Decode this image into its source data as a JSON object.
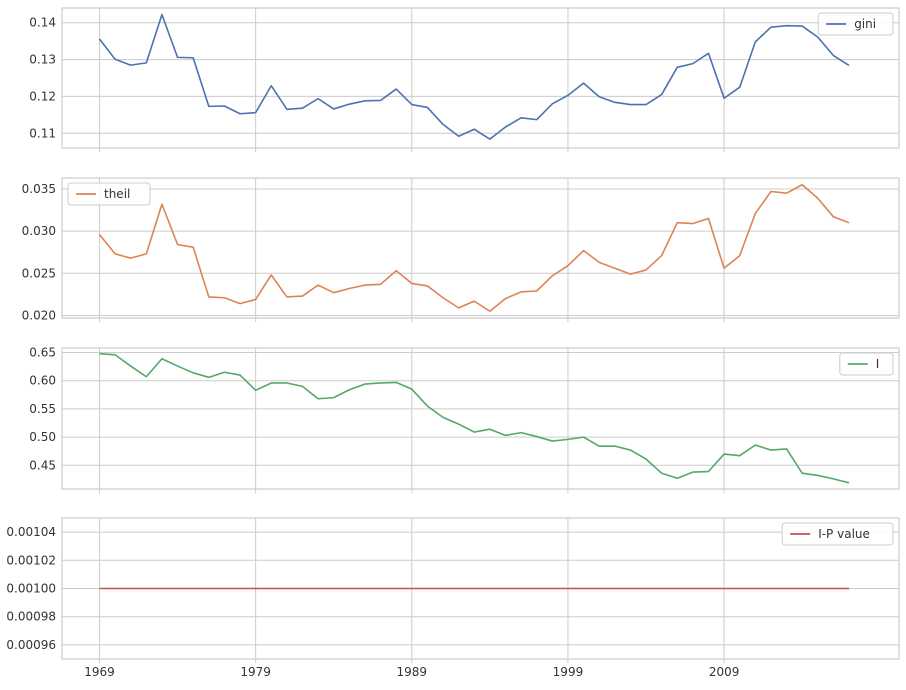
{
  "chart_data": [
    {
      "type": "line",
      "series": [
        {
          "name": "gini",
          "color": "#4c72b0",
          "values": [
            0.1356,
            0.1301,
            0.1285,
            0.1291,
            0.1422,
            0.1306,
            0.1305,
            0.1173,
            0.1174,
            0.1153,
            0.1156,
            0.1229,
            0.1165,
            0.1168,
            0.1194,
            0.1166,
            0.1179,
            0.1188,
            0.1189,
            0.122,
            0.1178,
            0.117,
            0.1124,
            0.1092,
            0.1111,
            0.1084,
            0.1117,
            0.1142,
            0.1137,
            0.118,
            0.1203,
            0.1236,
            0.1199,
            0.1184,
            0.1178,
            0.1178,
            0.1205,
            0.1279,
            0.1289,
            0.1317,
            0.1195,
            0.1225,
            0.1348,
            0.1388,
            0.1392,
            0.1391,
            0.1361,
            0.1311,
            0.1284
          ]
        }
      ],
      "ylim": [
        0.106,
        0.144
      ],
      "yticks": [
        0.11,
        0.12,
        0.13,
        0.14
      ],
      "ytick_labels": [
        "0.11",
        "0.12",
        "0.13",
        "0.14"
      ],
      "legend": "top-right"
    },
    {
      "type": "line",
      "series": [
        {
          "name": "theil",
          "color": "#dd8452",
          "values": [
            0.0296,
            0.0273,
            0.0268,
            0.0273,
            0.0332,
            0.0284,
            0.0281,
            0.0222,
            0.0221,
            0.0214,
            0.0219,
            0.0248,
            0.0222,
            0.0223,
            0.0236,
            0.0227,
            0.0232,
            0.0236,
            0.0237,
            0.0253,
            0.0238,
            0.0235,
            0.0221,
            0.0209,
            0.0217,
            0.0205,
            0.022,
            0.0228,
            0.0229,
            0.0247,
            0.0259,
            0.0277,
            0.0263,
            0.0256,
            0.0249,
            0.0254,
            0.0271,
            0.031,
            0.0309,
            0.0315,
            0.0256,
            0.0271,
            0.0321,
            0.0347,
            0.0345,
            0.0355,
            0.0339,
            0.0317,
            0.031
          ]
        }
      ],
      "ylim": [
        0.0197,
        0.0363
      ],
      "yticks": [
        0.02,
        0.025,
        0.03,
        0.035
      ],
      "ytick_labels": [
        "0.020",
        "0.025",
        "0.030",
        "0.035"
      ],
      "legend": "top-left"
    },
    {
      "type": "line",
      "series": [
        {
          "name": "I",
          "color": "#55a868",
          "values": [
            0.648,
            0.646,
            0.626,
            0.607,
            0.639,
            0.626,
            0.614,
            0.606,
            0.615,
            0.61,
            0.583,
            0.596,
            0.596,
            0.59,
            0.568,
            0.57,
            0.584,
            0.594,
            0.596,
            0.597,
            0.585,
            0.555,
            0.535,
            0.523,
            0.509,
            0.514,
            0.503,
            0.508,
            0.501,
            0.493,
            0.496,
            0.5,
            0.484,
            0.484,
            0.477,
            0.461,
            0.436,
            0.427,
            0.438,
            0.439,
            0.47,
            0.467,
            0.486,
            0.477,
            0.479,
            0.436,
            0.432,
            0.426,
            0.419
          ]
        }
      ],
      "ylim": [
        0.408,
        0.658
      ],
      "yticks": [
        0.45,
        0.5,
        0.55,
        0.6,
        0.65
      ],
      "ytick_labels": [
        "0.45",
        "0.50",
        "0.55",
        "0.60",
        "0.65"
      ],
      "legend": "top-right"
    },
    {
      "type": "line",
      "series": [
        {
          "name": "I-P value",
          "color": "#c44e52",
          "values": [
            0.001,
            0.001,
            0.001,
            0.001,
            0.001,
            0.001,
            0.001,
            0.001,
            0.001,
            0.001,
            0.001,
            0.001,
            0.001,
            0.001,
            0.001,
            0.001,
            0.001,
            0.001,
            0.001,
            0.001,
            0.001,
            0.001,
            0.001,
            0.001,
            0.001,
            0.001,
            0.001,
            0.001,
            0.001,
            0.001,
            0.001,
            0.001,
            0.001,
            0.001,
            0.001,
            0.001,
            0.001,
            0.001,
            0.001,
            0.001,
            0.001,
            0.001,
            0.001,
            0.001,
            0.001,
            0.001,
            0.001,
            0.001,
            0.001
          ]
        }
      ],
      "ylim": [
        0.00095,
        0.00105
      ],
      "yticks": [
        0.00096,
        0.00098,
        0.001,
        0.00102,
        0.00104
      ],
      "ytick_labels": [
        "0.00096",
        "0.00098",
        "0.00100",
        "0.00102",
        "0.00104"
      ],
      "legend": "top-right"
    }
  ],
  "x": {
    "start": 1969,
    "end": 2017,
    "ticks": [
      1969,
      1979,
      1989,
      1999,
      2009
    ],
    "tick_labels": [
      "1969",
      "1979",
      "1989",
      "1999",
      "2009"
    ],
    "range": [
      1966.6,
      2020.2
    ]
  },
  "style": {
    "grid": true,
    "grid_color": "#cccccc",
    "spine_color": "#cccccc",
    "background": "#ffffff"
  }
}
